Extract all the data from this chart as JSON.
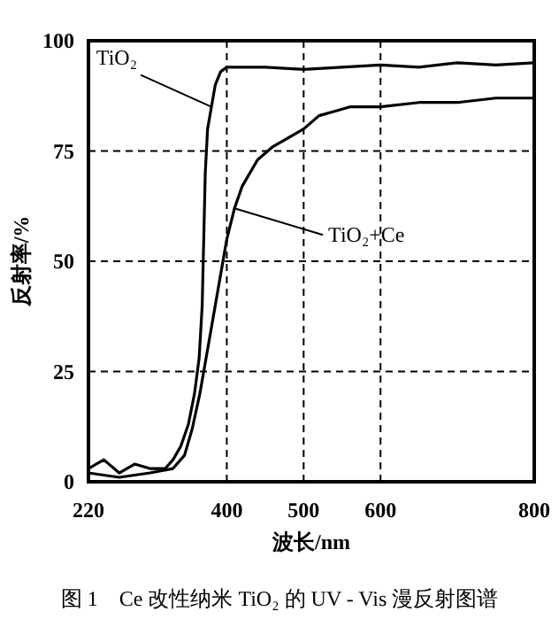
{
  "chart_data": {
    "type": "line",
    "xlabel": "波长/nm",
    "ylabel": "反射率/%",
    "xlim": [
      220,
      800
    ],
    "ylim": [
      0,
      100
    ],
    "xticks": [
      220,
      400,
      500,
      600,
      800
    ],
    "yticks": [
      0,
      25,
      50,
      75,
      100
    ],
    "grid": true,
    "marker": "none",
    "line_style": "solid",
    "series": [
      {
        "color": "#000000",
        "x": [
          220,
          240,
          260,
          280,
          300,
          320,
          330,
          340,
          350,
          358,
          364,
          368,
          370,
          372,
          375,
          380,
          385,
          392,
          400,
          450,
          500,
          550,
          600,
          650,
          700,
          750,
          800
        ],
        "values": [
          3,
          5,
          2,
          4,
          3,
          3,
          5,
          8,
          13,
          20,
          28,
          40,
          55,
          70,
          80,
          85,
          90,
          93,
          94,
          94,
          93.5,
          94,
          94.5,
          94,
          95,
          94.5,
          95
        ]
      },
      {
        "color": "#000000",
        "x": [
          220,
          260,
          300,
          330,
          345,
          355,
          365,
          372,
          380,
          390,
          400,
          410,
          420,
          440,
          460,
          480,
          500,
          520,
          540,
          560,
          600,
          650,
          700,
          750,
          800
        ],
        "values": [
          2,
          1,
          2,
          3,
          6,
          12,
          20,
          27,
          35,
          45,
          55,
          62,
          67,
          73,
          76,
          78,
          80,
          83,
          84,
          85,
          85,
          86,
          86,
          87,
          87
        ]
      }
    ],
    "annotations": [
      {
        "text": "TiO₂",
        "x": 380,
        "y": 85
      },
      {
        "text": "TiO₂+Ce",
        "x": 410,
        "y": 62
      },
      "图 1　Ce 改性纳米 TiO₂ 的 UV - Vis 漫反射图谱"
    ]
  }
}
